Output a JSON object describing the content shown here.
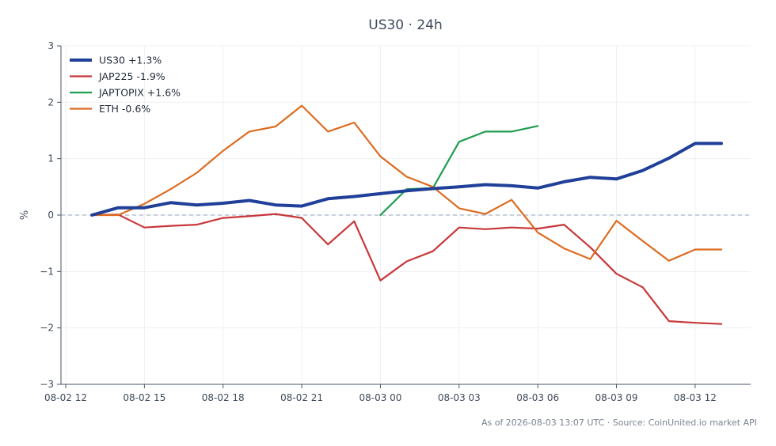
{
  "chart_data": {
    "type": "line",
    "title": "US30 · 24h",
    "ylabel": "%",
    "xlabel": "",
    "footer": "As of 2026-08-03 13:07 UTC · Source: CoinUnited.io market API",
    "zero_line": true,
    "grid": true,
    "legend_position": "top-left",
    "x_start": "2026-08-02 13:00",
    "x_step_hours": 1,
    "xlim": [
      "2026-08-02 12:00",
      "2026-08-03 14:07"
    ],
    "ylim": [
      -3,
      3
    ],
    "x_ticks": [
      {
        "time": "2026-08-02 12:00",
        "label": "08-02 12"
      },
      {
        "time": "2026-08-02 15:00",
        "label": "08-02 15"
      },
      {
        "time": "2026-08-02 18:00",
        "label": "08-02 18"
      },
      {
        "time": "2026-08-02 21:00",
        "label": "08-02 21"
      },
      {
        "time": "2026-08-03 00:00",
        "label": "08-03 00"
      },
      {
        "time": "2026-08-03 03:00",
        "label": "08-03 03"
      },
      {
        "time": "2026-08-03 06:00",
        "label": "08-03 06"
      },
      {
        "time": "2026-08-03 09:00",
        "label": "08-03 09"
      },
      {
        "time": "2026-08-03 12:00",
        "label": "08-03 12"
      }
    ],
    "y_ticks": [
      {
        "value": 3,
        "label": "3"
      },
      {
        "value": 2,
        "label": "2"
      },
      {
        "value": 1,
        "label": "1"
      },
      {
        "value": 0,
        "label": "0"
      },
      {
        "value": -1,
        "label": "−1"
      },
      {
        "value": -2,
        "label": "−2"
      },
      {
        "value": -3,
        "label": "−3"
      }
    ],
    "series": [
      {
        "name": "US30 +1.3%",
        "color": "#1f3f99",
        "emphasis": true,
        "start_offset": 0,
        "values": [
          0.0,
          0.13,
          0.13,
          0.22,
          0.18,
          0.21,
          0.26,
          0.18,
          0.16,
          0.29,
          0.33,
          0.38,
          0.43,
          0.47,
          0.5,
          0.54,
          0.52,
          0.48,
          0.59,
          0.67,
          0.64,
          0.79,
          1.01,
          1.27,
          1.27
        ]
      },
      {
        "name": "JAP225 -1.9%",
        "color": "#c8373a",
        "emphasis": false,
        "start_offset": 0,
        "values": [
          0.0,
          0.01,
          -0.22,
          -0.19,
          -0.17,
          -0.05,
          -0.02,
          0.02,
          -0.05,
          -0.52,
          -0.11,
          -1.16,
          -0.82,
          -0.64,
          -0.22,
          -0.25,
          -0.22,
          -0.24,
          -0.17,
          -0.57,
          -1.04,
          -1.28,
          -1.88,
          -1.91,
          -1.93
        ]
      },
      {
        "name": "JAPTOPIX +1.6%",
        "color": "#1f9d50",
        "emphasis": false,
        "start_offset": 11,
        "values": [
          0.0,
          0.46,
          0.48,
          1.3,
          1.48,
          1.48,
          1.58
        ]
      },
      {
        "name": "ETH -0.6%",
        "color": "#dd6b20",
        "emphasis": false,
        "start_offset": 0,
        "values": [
          0.0,
          0.0,
          0.2,
          0.46,
          0.75,
          1.14,
          1.48,
          1.57,
          1.94,
          1.48,
          1.64,
          1.04,
          0.68,
          0.5,
          0.12,
          0.02,
          0.27,
          -0.31,
          -0.59,
          -0.78,
          -0.1,
          -0.46,
          -0.81,
          -0.61,
          -0.61
        ]
      }
    ]
  }
}
